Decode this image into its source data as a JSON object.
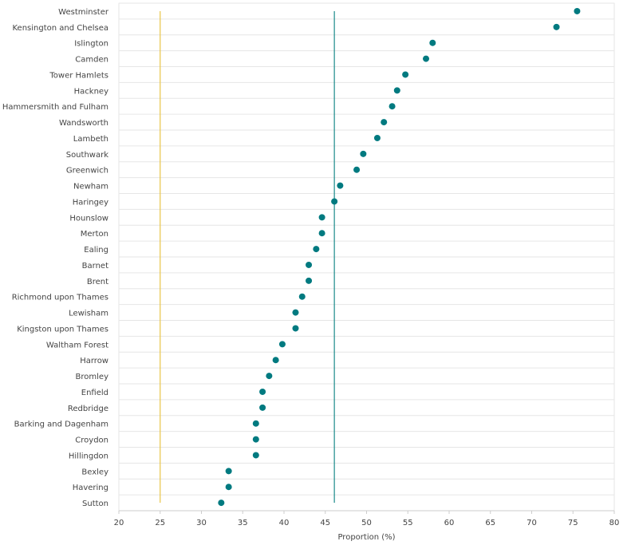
{
  "chart_data": {
    "type": "scatter",
    "orientation": "horizontal",
    "xlabel": "Proportion (%)",
    "xlim": [
      20,
      80
    ],
    "xticks": [
      20,
      25,
      30,
      35,
      40,
      45,
      50,
      55,
      60,
      65,
      70,
      75,
      80
    ],
    "grid": true,
    "categories": [
      "Westminster",
      "Kensington and Chelsea",
      "Islington",
      "Camden",
      "Tower Hamlets",
      "Hackney",
      "Hammersmith and Fulham",
      "Wandsworth",
      "Lambeth",
      "Southwark",
      "Greenwich",
      "Newham",
      "Haringey",
      "Hounslow",
      "Merton",
      "Ealing",
      "Barnet",
      "Brent",
      "Richmond upon Thames",
      "Lewisham",
      "Kingston upon Thames",
      "Waltham Forest",
      "Harrow",
      "Bromley",
      "Enfield",
      "Redbridge",
      "Barking and Dagenham",
      "Croydon",
      "Hillingdon",
      "Bexley",
      "Havering",
      "Sutton"
    ],
    "values": [
      75.5,
      73.0,
      58.0,
      57.2,
      54.7,
      53.7,
      53.1,
      52.1,
      51.3,
      49.6,
      48.8,
      46.8,
      46.1,
      44.6,
      44.6,
      43.9,
      43.0,
      43.0,
      42.2,
      41.4,
      41.4,
      39.8,
      39.0,
      38.2,
      37.4,
      37.4,
      36.6,
      36.6,
      36.6,
      33.3,
      33.3,
      32.4
    ],
    "reference_lines": [
      {
        "value": 25,
        "color": "#e8c547"
      },
      {
        "value": 46.1,
        "color": "#1a8a8a"
      }
    ],
    "point_color": "#007a80"
  }
}
